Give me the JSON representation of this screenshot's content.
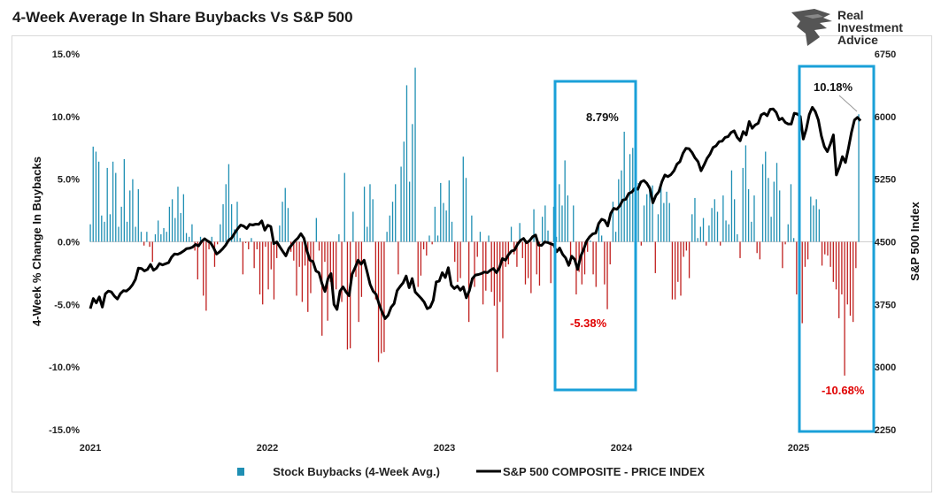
{
  "chart_data": {
    "type": "bar+line",
    "title": "4-Week Average In Share Buybacks Vs S&P 500",
    "brand": {
      "line1": "Real",
      "line2": "Investment",
      "line3": "Advice"
    },
    "y_left": {
      "label": "4-Week % Change In Buybacks",
      "range": [
        -15,
        15
      ],
      "ticks": [
        15,
        10,
        5,
        0,
        -5,
        -10,
        -15
      ],
      "tick_labels": [
        "15.0%",
        "10.0%",
        "5.0%",
        "0.0%",
        "-5.0%",
        "-10.0%",
        "-15.0%"
      ]
    },
    "y_right": {
      "label": "S&P 500 Index",
      "range": [
        2250,
        6750
      ],
      "ticks": [
        6750,
        6000,
        5250,
        4500,
        3750,
        3000,
        2250
      ],
      "tick_labels": [
        "6750",
        "6000",
        "5250",
        "4500",
        "3750",
        "3000",
        "2250"
      ]
    },
    "x": {
      "range": [
        2021.0,
        2025.42
      ],
      "ticks": [
        2021,
        2022,
        2023,
        2024,
        2025
      ],
      "tick_labels": [
        "2021",
        "2022",
        "2023",
        "2024",
        "2025"
      ]
    },
    "series": [
      {
        "name": "Stock Buybacks (4-Week Avg.)",
        "kind": "bar",
        "positive_color": "#1f8fb3",
        "negative_color": "#c0201f",
        "note": "weekly values, % change, approximate",
        "values": [
          1.4,
          7.6,
          7.2,
          6.4,
          2.1,
          1.6,
          5.9,
          2.2,
          6.4,
          5.5,
          1.2,
          2.8,
          6.6,
          1.6,
          4.1,
          5.0,
          1.2,
          4.2,
          0.8,
          -0.3,
          0.8,
          -0.4,
          -1.6,
          0.6,
          1.7,
          0.6,
          1.1,
          0.8,
          2.8,
          3.4,
          1.9,
          4.4,
          2.3,
          3.8,
          0.7,
          0.4,
          1.4,
          -0.7,
          -3.0,
          0.4,
          -4.3,
          -5.5,
          -0.6,
          0.4,
          -2.0,
          -0.2,
          1.4,
          3.0,
          4.6,
          6.2,
          3.0,
          1.0,
          3.2,
          0.3,
          -2.6,
          -0.1,
          -0.6,
          0.3,
          -2.1,
          -0.6,
          -4.2,
          -5.0,
          -0.4,
          -3.8,
          -2.2,
          -4.6,
          -1.3,
          1.3,
          3.2,
          4.3,
          2.7,
          -0.8,
          -1.5,
          -4.3,
          -2.0,
          -4.8,
          -1.9,
          -5.6,
          -4.1,
          -1.5,
          1.9,
          -0.7,
          -7.5,
          -1.6,
          -6.3,
          -3.2,
          -4.6,
          -3.8,
          0.6,
          -4.8,
          5.5,
          -8.6,
          -8.5,
          2.4,
          -2.8,
          -6.4,
          -4.4,
          4.4,
          1.2,
          4.6,
          3.4,
          -4.6,
          -9.6,
          -8.9,
          -8.8,
          0.8,
          2.1,
          3.2,
          4.6,
          -2.6,
          6.0,
          8.0,
          12.5,
          4.8,
          9.4,
          13.9,
          -3.6,
          -2.7,
          -0.6,
          -1.1,
          0.5,
          -0.2,
          2.8,
          0.5,
          4.7,
          3.1,
          2.5,
          4.9,
          1.6,
          -1.6,
          -3.2,
          -2.9,
          6.8,
          5.1,
          -6.4,
          2.1,
          -3.6,
          -1.2,
          0.8,
          -5.0,
          -3.9,
          0.5,
          -4.0,
          -5.1,
          -10.4,
          -4.8,
          -7.7,
          -2.0,
          -1.8,
          1.2,
          -1.0,
          -2.0,
          1.5,
          -1.3,
          -3.4,
          -2.9,
          -4.1,
          2.6,
          -2.6,
          -3.5,
          2.0,
          2.9,
          0.9,
          -3.3,
          2.8,
          0.4,
          4.6,
          2.9,
          6.5,
          3.7,
          -1.8,
          2.9,
          -4.2,
          -2.4,
          -3.4,
          -2.6,
          -0.8,
          0.1,
          -2.6,
          -3.6,
          1.5,
          0.5,
          -3.4,
          -5.38,
          -1.8,
          3.2,
          0.8,
          5.0,
          5.7,
          8.79,
          3.6,
          7.0,
          7.5,
          6.8,
          4.7,
          -0.3,
          2.9,
          3.8,
          4.5,
          4.5,
          -2.5,
          2.2,
          4.4,
          3.1,
          4.0,
          3.1,
          -4.6,
          -4.6,
          -3.2,
          -4.3,
          -1.2,
          -0.7,
          -2.9,
          2.2,
          3.5,
          0.3,
          1.2,
          1.9,
          -0.3,
          1.3,
          2.7,
          3.4,
          2.4,
          -0.3,
          3.7,
          1.7,
          1.4,
          5.7,
          3.4,
          0.6,
          -1.3,
          5.9,
          7.7,
          4.2,
          1.6,
          3.7,
          -0.9,
          -1.4,
          6.2,
          7.2,
          5.1,
          2.0,
          4.8,
          6.3,
          4.1,
          -2.1,
          -0.2,
          1.4,
          4.6,
          0.3,
          -4.2,
          -5.8,
          -6.5,
          -2.0,
          -1.4,
          3.6,
          2.9,
          3.4,
          2.6,
          -1.9,
          -1.0,
          -1.1,
          -2.0,
          -3.2,
          -3.8,
          -6.1,
          -4.2,
          -10.68,
          -5.0,
          -5.9,
          -6.4,
          -2.1,
          10.18
        ]
      },
      {
        "name": "S&P 500 COMPOSITE - PRICE INDEX",
        "kind": "line",
        "color": "#000000",
        "note": "weekly closes, approximate",
        "values": [
          3700,
          3820,
          3768,
          3840,
          3719,
          3876,
          3910,
          3900,
          3850,
          3815,
          3880,
          3914,
          3910,
          3940,
          3984,
          4050,
          4185,
          4180,
          4152,
          4170,
          4229,
          4159,
          4185,
          4240,
          4224,
          4237,
          4250,
          4316,
          4355,
          4350,
          4367,
          4390,
          4418,
          4423,
          4436,
          4468,
          4450,
          4503,
          4536,
          4509,
          4488,
          4428,
          4354,
          4380,
          4416,
          4460,
          4520,
          4546,
          4605,
          4657,
          4700,
          4687,
          4659,
          4709,
          4701,
          4712,
          4710,
          4750,
          4640,
          4698,
          4683,
          4478,
          4498,
          4440,
          4385,
          4332,
          4420,
          4465,
          4510,
          4545,
          4597,
          4543,
          4395,
          4280,
          4265,
          4152,
          4130,
          4000,
          3905,
          4060,
          4120,
          3750,
          3690,
          3910,
          3960,
          3900,
          3854,
          4110,
          4190,
          4280,
          4232,
          4280,
          4140,
          3990,
          3908,
          3870,
          3750,
          3660,
          3580,
          3620,
          3715,
          3760,
          3915,
          3965,
          4010,
          4090,
          3950,
          4060,
          3900,
          3860,
          3822,
          3778,
          3700,
          3718,
          3800,
          4020,
          4030,
          4130,
          4072,
          4190,
          3980,
          3940,
          3970,
          3920,
          3960,
          3830,
          3915,
          4060,
          4102,
          4108,
          4120,
          4138,
          4130,
          4160,
          4180,
          4130,
          4190,
          4300,
          4280,
          4346,
          4390,
          4400,
          4470,
          4517,
          4540,
          4488,
          4513,
          4560,
          4582,
          4460,
          4458,
          4498,
          4492,
          4477,
          4465,
          4380,
          4425,
          4350,
          4306,
          4217,
          4327,
          4290,
          4170,
          4325,
          4410,
          4510,
          4560,
          4594,
          4604,
          4720,
          4770,
          4755,
          4690,
          4840,
          4900,
          4890,
          4930,
          5000,
          5010,
          5080,
          5095,
          5140,
          5130,
          5217,
          5234,
          5200,
          5140,
          4967,
          5055,
          5100,
          5220,
          5300,
          5280,
          5305,
          5350,
          5430,
          5460,
          5560,
          5620,
          5615,
          5570,
          5505,
          5460,
          5350,
          5420,
          5500,
          5550,
          5630,
          5650,
          5700,
          5705,
          5750,
          5760,
          5810,
          5830,
          5750,
          5710,
          5820,
          5780,
          5940,
          5860,
          5900,
          5920,
          6020,
          6040,
          6010,
          6087,
          6090,
          6050,
          5960,
          5980,
          5930,
          5910,
          5910,
          6040,
          6030,
          6001,
          5730,
          5850,
          6025,
          6110,
          6060,
          5960,
          5770,
          5640,
          5580,
          5670,
          5780,
          5300,
          5396,
          5520,
          5450,
          5620,
          5810,
          5958,
          5990,
          5950
        ]
      }
    ],
    "annotations": [
      {
        "text": "8.79%",
        "color": "#111111"
      },
      {
        "text": "-5.38%",
        "color": "#e00000"
      },
      {
        "text": "10.18%",
        "color": "#111111"
      },
      {
        "text": "-10.68%",
        "color": "#e00000"
      }
    ],
    "highlight_boxes": [
      {
        "period": "2023 Q3-Q4",
        "color": "#1aa0d8"
      },
      {
        "period": "2025",
        "color": "#1aa0d8"
      }
    ],
    "legend_position": "bottom-center"
  }
}
